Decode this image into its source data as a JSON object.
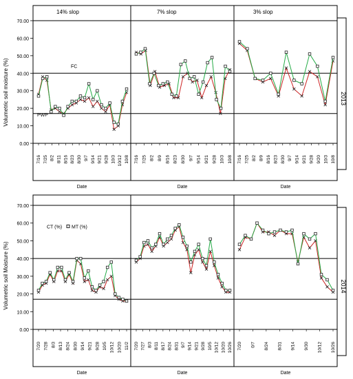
{
  "figure": {
    "ylabel_top": "Volumetric soil moisture (%)",
    "ylabel_bottom": "Volumetric soil Moisture (%)",
    "xlabel": "Date",
    "panel_titles": [
      "14% slop",
      "7% slop",
      "3% slop"
    ],
    "row_labels": [
      "2013",
      "2014"
    ],
    "fc_label": "FC",
    "pwp_label": "PWP",
    "legend": {
      "ct": "CT (%)",
      "mt": "MT (%)"
    },
    "ytick_labels": [
      "0.00",
      "10.00",
      "20.00",
      "30.00",
      "40.00",
      "50.00",
      "60.00",
      "70.00"
    ],
    "colors": {
      "ct": "#cc2222",
      "mt": "#22aa44",
      "marker": "#222222",
      "refline": "#000000"
    }
  },
  "chart_data": [
    {
      "type": "line",
      "row": "2013",
      "panel": "14% slop",
      "ylim": [
        0,
        70
      ],
      "reference_lines": {
        "FC": 40,
        "PWP": 17
      },
      "x_tick_labels": [
        "7/16",
        "7/25",
        "8/2",
        "8/11",
        "8/16",
        "8/23",
        "8/30",
        "9/7",
        "9/14",
        "9/21",
        "9/28",
        "10/3",
        "10/12",
        "10/8"
      ],
      "series": [
        {
          "name": "CT (%)",
          "values": [
            28,
            38,
            36,
            19,
            20,
            18,
            17,
            20,
            22,
            23,
            25,
            24,
            26,
            21,
            24,
            20,
            18,
            22,
            8,
            10,
            22,
            29
          ]
        },
        {
          "name": "MT (%)",
          "values": [
            27,
            37,
            38,
            18,
            21,
            20,
            16,
            21,
            24,
            24,
            27,
            26,
            34,
            25,
            30,
            22,
            20,
            23,
            12,
            11,
            24,
            31
          ]
        }
      ]
    },
    {
      "type": "line",
      "row": "2013",
      "panel": "7% slop",
      "ylim": [
        0,
        70
      ],
      "reference_lines": {
        "FC": 40,
        "PWP": 17
      },
      "x_tick_labels": [
        "7/16",
        "7/25",
        "8/2",
        "8/9",
        "8/16",
        "8/23",
        "8/30",
        "9/7",
        "9/14",
        "9/21",
        "9/28",
        "10/3",
        "10/8"
      ],
      "series": [
        {
          "name": "CT (%)",
          "values": [
            52,
            51,
            53,
            33,
            41,
            32,
            33,
            34,
            26,
            26,
            38,
            40,
            35,
            36,
            26,
            33,
            38,
            29,
            17,
            37,
            42
          ]
        },
        {
          "name": "MT (%)",
          "values": [
            51,
            52,
            54,
            34,
            40,
            33,
            34,
            35,
            28,
            27,
            45,
            47,
            37,
            38,
            28,
            35,
            46,
            49,
            25,
            20,
            44,
            41
          ]
        }
      ]
    },
    {
      "type": "line",
      "row": "2013",
      "panel": "3% slop",
      "ylim": [
        0,
        70
      ],
      "reference_lines": {
        "FC": 40,
        "PWP": 17
      },
      "x_tick_labels": [
        "7/16",
        "7/25",
        "8/2",
        "8/9",
        "8/16",
        "8/23",
        "8/30",
        "9/7",
        "9/14",
        "9/21",
        "9/28",
        "9/20",
        "10/3",
        "10/8"
      ],
      "series": [
        {
          "name": "CT (%)",
          "values": [
            57,
            53,
            37,
            35,
            37,
            27,
            43,
            31,
            27,
            41,
            38,
            22,
            47
          ]
        },
        {
          "name": "MT (%)",
          "values": [
            58,
            54,
            37,
            36,
            40,
            28,
            52,
            36,
            34,
            51,
            44,
            24,
            49
          ]
        }
      ]
    },
    {
      "type": "line",
      "row": "2014",
      "panel": "14% slop",
      "ylim": [
        0,
        70
      ],
      "reference_lines": {
        "FC": 40,
        "PWP": 17
      },
      "x_tick_labels": [
        "7/20",
        "7/28",
        "8/3",
        "8/13",
        "8/24",
        "8/30",
        "9/14",
        "9/21",
        "9/28",
        "10/5",
        "10/12",
        "10/20",
        "11/2"
      ],
      "series": [
        {
          "name": "CT (%)",
          "values": [
            21,
            25,
            26,
            31,
            27,
            33,
            33,
            27,
            31,
            26,
            39,
            37,
            27,
            28,
            22,
            21,
            24,
            23,
            28,
            30,
            19,
            17,
            16,
            16
          ]
        },
        {
          "name": "MT (%)",
          "values": [
            22,
            26,
            27,
            32,
            28,
            35,
            35,
            28,
            32,
            27,
            40,
            40,
            29,
            33,
            24,
            22,
            25,
            27,
            35,
            38,
            20,
            18,
            17,
            16
          ]
        }
      ]
    },
    {
      "type": "line",
      "row": "2014",
      "panel": "7% slop",
      "ylim": [
        0,
        70
      ],
      "reference_lines": {
        "FC": 40,
        "PWP": 17
      },
      "x_tick_labels": [
        "7/20",
        "7/27",
        "8/3",
        "8/11",
        "8/17",
        "8/24",
        "8/31",
        "9/7",
        "9/14",
        "9/21",
        "9/28",
        "10/5",
        "10/12",
        "10/20",
        "10/26"
      ],
      "series": [
        {
          "name": "CT (%)",
          "values": [
            38,
            40,
            47,
            48,
            44,
            47,
            52,
            47,
            49,
            51,
            56,
            58,
            49,
            45,
            32,
            42,
            45,
            38,
            34,
            44,
            36,
            29,
            24,
            21,
            21
          ]
        },
        {
          "name": "MT (%)",
          "values": [
            39,
            41,
            49,
            50,
            46,
            48,
            54,
            48,
            51,
            53,
            57,
            59,
            52,
            47,
            38,
            44,
            48,
            40,
            36,
            51,
            38,
            31,
            26,
            22,
            22
          ]
        }
      ]
    },
    {
      "type": "line",
      "row": "2014",
      "panel": "3% slop",
      "ylim": [
        0,
        70
      ],
      "reference_lines": {
        "FC": 40,
        "PWP": 17
      },
      "x_tick_labels": [
        "7/20",
        "0/7",
        "8/24",
        "8/31",
        "9/14",
        "9/30",
        "10/12",
        "10/26"
      ],
      "series": [
        {
          "name": "CT (%)",
          "values": [
            45,
            52,
            51,
            60,
            55,
            55,
            53,
            56,
            54,
            54,
            38,
            52,
            46,
            50,
            29,
            24,
            21
          ]
        },
        {
          "name": "MT (%)",
          "values": [
            48,
            53,
            51,
            60,
            56,
            54,
            55,
            56,
            55,
            56,
            37,
            54,
            51,
            54,
            31,
            28,
            22
          ]
        }
      ]
    }
  ]
}
